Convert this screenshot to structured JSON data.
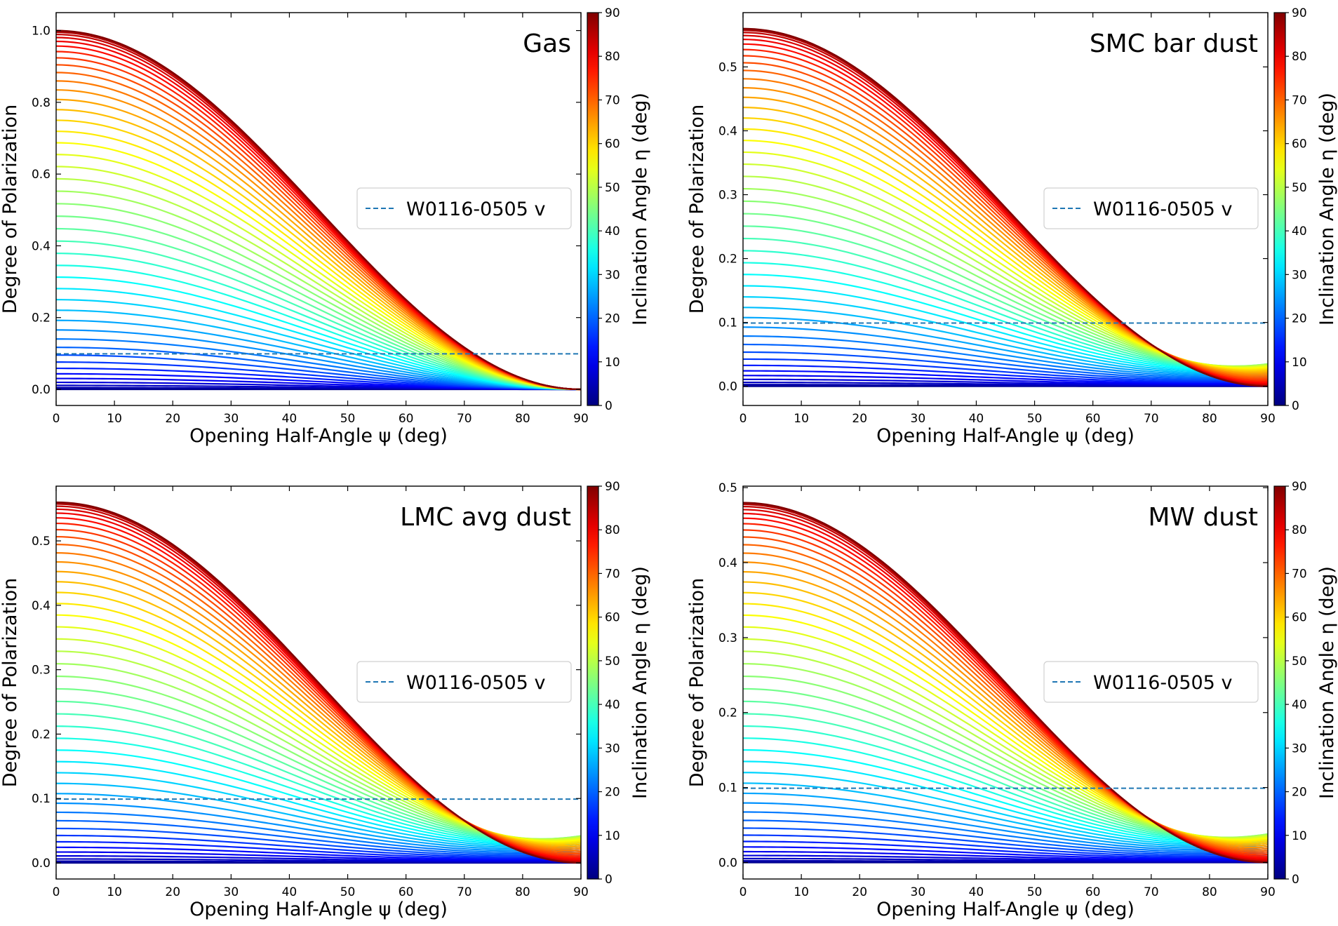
{
  "figure": {
    "colorbar_label": "Inclination Angle η (deg)",
    "colorbar_ticks": [
      "0",
      "10",
      "20",
      "30",
      "40",
      "50",
      "60",
      "70",
      "80",
      "90"
    ],
    "colormap": "jet",
    "reference_line_color": "#1f77b4"
  },
  "chart_data": [
    {
      "type": "line",
      "panel_label": "Gas",
      "xlabel": "Opening Half-Angle ψ (deg)",
      "ylabel": "Degree of Polarization",
      "xlim": [
        0,
        90
      ],
      "ylim": [
        -0.045,
        1.05
      ],
      "xticks": [
        0,
        10,
        20,
        30,
        40,
        50,
        60,
        70,
        80,
        90
      ],
      "yticks": [
        0.0,
        0.2,
        0.4,
        0.6,
        0.8,
        1.0
      ],
      "ytick_labels": [
        "0.0",
        "0.2",
        "0.4",
        "0.6",
        "0.8",
        "1.0"
      ],
      "grid": false,
      "legend": {
        "label": "W0116-0505 v",
        "placement": "center-right"
      },
      "reference_line": {
        "y": 0.099,
        "style": "dashed"
      },
      "inclination_curves": {
        "eta_start": 0,
        "eta_end": 90,
        "eta_step": 2,
        "count": 46
      },
      "p_max_at_psi0": 1.0,
      "p_at_psi90_eta90": 0.0,
      "curve_shape": "P(psi=0) = Pmax*sin^2(eta); all curves decrease to 0 at psi=90"
    },
    {
      "type": "line",
      "panel_label": "SMC bar dust",
      "xlabel": "Opening Half-Angle ψ (deg)",
      "ylabel": "Degree of Polarization",
      "xlim": [
        0,
        90
      ],
      "ylim": [
        -0.03,
        0.585
      ],
      "xticks": [
        0,
        10,
        20,
        30,
        40,
        50,
        60,
        70,
        80,
        90
      ],
      "yticks": [
        0.0,
        0.1,
        0.2,
        0.3,
        0.4,
        0.5
      ],
      "ytick_labels": [
        "0.0",
        "0.1",
        "0.2",
        "0.3",
        "0.4",
        "0.5"
      ],
      "grid": false,
      "legend": {
        "label": "W0116-0505 v",
        "placement": "center-right"
      },
      "reference_line": {
        "y": 0.099,
        "style": "dashed"
      },
      "inclination_curves": {
        "eta_start": 0,
        "eta_end": 90,
        "eta_step": 2,
        "count": 46
      },
      "p_max_at_psi0": 0.56,
      "p_at_psi90_eta90": 0.0,
      "p_at_psi90_eta60": 0.035,
      "curve_shape": "P(psi=0) = Pmax*sin^2(eta); curves converge near psi=90, intermediate eta stay slightly above 0"
    },
    {
      "type": "line",
      "panel_label": "LMC avg dust",
      "xlabel": "Opening Half-Angle ψ (deg)",
      "ylabel": "Degree of Polarization",
      "xlim": [
        0,
        90
      ],
      "ylim": [
        -0.025,
        0.585
      ],
      "xticks": [
        0,
        10,
        20,
        30,
        40,
        50,
        60,
        70,
        80,
        90
      ],
      "yticks": [
        0.0,
        0.1,
        0.2,
        0.3,
        0.4,
        0.5
      ],
      "ytick_labels": [
        "0.0",
        "0.1",
        "0.2",
        "0.3",
        "0.4",
        "0.5"
      ],
      "grid": false,
      "legend": {
        "label": "W0116-0505 v",
        "placement": "center-right"
      },
      "reference_line": {
        "y": 0.099,
        "style": "dashed"
      },
      "inclination_curves": {
        "eta_start": 0,
        "eta_end": 90,
        "eta_step": 2,
        "count": 46
      },
      "p_max_at_psi0": 0.56,
      "p_at_psi90_eta90": 0.0,
      "p_at_psi90_eta60": 0.042,
      "curve_shape": "P(psi=0) = Pmax*sin^2(eta); curves converge near psi=90, intermediate eta stay slightly above 0"
    },
    {
      "type": "line",
      "panel_label": "MW dust",
      "xlabel": "Opening Half-Angle ψ (deg)",
      "ylabel": "Degree of Polarization",
      "xlim": [
        0,
        90
      ],
      "ylim": [
        -0.022,
        0.502
      ],
      "xticks": [
        0,
        10,
        20,
        30,
        40,
        50,
        60,
        70,
        80,
        90
      ],
      "yticks": [
        0.0,
        0.1,
        0.2,
        0.3,
        0.4,
        0.5
      ],
      "ytick_labels": [
        "0.0",
        "0.1",
        "0.2",
        "0.3",
        "0.4",
        "0.5"
      ],
      "grid": false,
      "legend": {
        "label": "W0116-0505 v",
        "placement": "center-right"
      },
      "reference_line": {
        "y": 0.099,
        "style": "dashed"
      },
      "inclination_curves": {
        "eta_start": 0,
        "eta_end": 90,
        "eta_step": 2,
        "count": 46
      },
      "p_max_at_psi0": 0.48,
      "p_at_psi90_eta90": 0.0,
      "p_at_psi90_eta60": 0.038,
      "curve_shape": "P(psi=0) = Pmax*sin^2(eta); curves converge near psi=90, intermediate eta stay slightly above 0"
    }
  ]
}
